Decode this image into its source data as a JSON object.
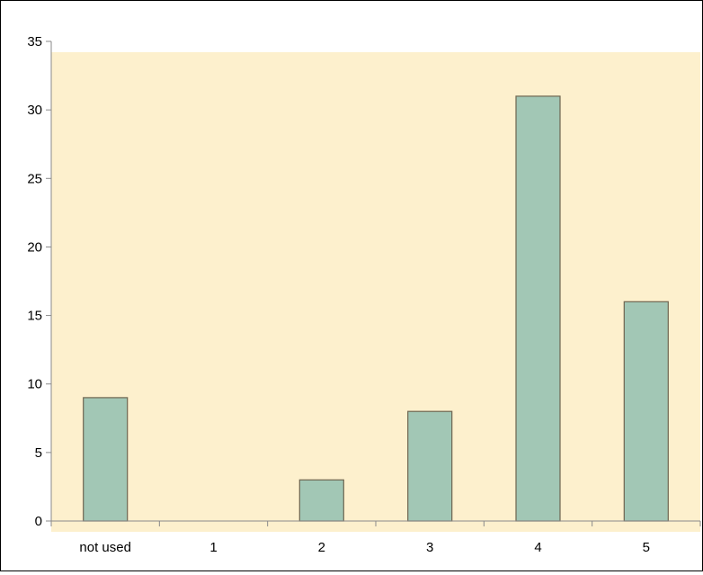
{
  "chart_data": {
    "type": "bar",
    "title": "",
    "xlabel": "",
    "ylabel": "",
    "categories": [
      "not used",
      "1",
      "2",
      "3",
      "4",
      "5"
    ],
    "values": [
      9,
      0,
      3,
      8,
      31,
      16
    ],
    "ylim": [
      0,
      35
    ],
    "yticks": [
      0,
      5,
      10,
      15,
      20,
      25,
      30,
      35
    ],
    "ytick_labels": [
      "0",
      "5",
      "10",
      "15",
      "20",
      "25",
      "30",
      "35"
    ],
    "grid": false,
    "legend": "none",
    "colors": {
      "bar_fill": "#a2c7b5",
      "bar_stroke": "#6e6450",
      "plot_background": "#fdf0cd",
      "axis": "#8a8a8a"
    }
  }
}
